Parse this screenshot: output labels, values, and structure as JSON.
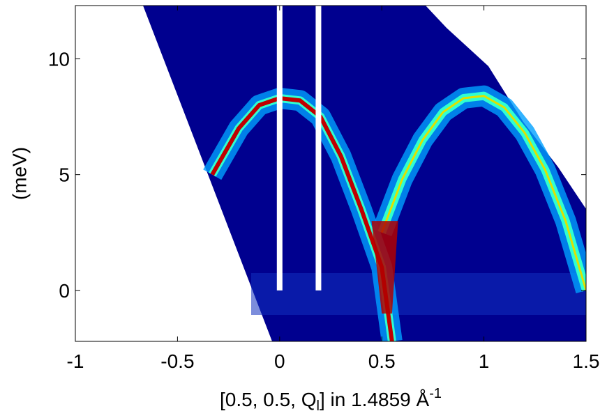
{
  "chart_data": {
    "type": "heatmap",
    "xlabel": {
      "text": "[0.5, 0.5, Q",
      "sub": "l",
      "rest": "] in 1.4859 Å",
      "sup": "-1"
    },
    "ylabel": "(meV)",
    "xlim": [
      -1,
      1.5
    ],
    "ylim": [
      -2.2,
      12.3
    ],
    "xticks": [
      -1,
      -0.5,
      0,
      0.5,
      1,
      1.5
    ],
    "yticks": [
      0,
      5,
      10
    ],
    "series": [
      {
        "x": [
          -0.33,
          -0.2,
          -0.1,
          0,
          0.1,
          0.2,
          0.3,
          0.4,
          0.5,
          0.55
        ],
        "values": [
          5,
          7,
          8,
          8.3,
          8.2,
          7.5,
          5.8,
          3.5,
          1,
          -2.2
        ]
      },
      {
        "x": [
          0.5,
          0.6,
          0.7,
          0.8,
          0.9,
          1,
          1.1,
          1.2,
          1.3,
          1.4,
          1.5
        ],
        "values": [
          2.5,
          4.8,
          6.5,
          7.7,
          8.3,
          8.4,
          7.9,
          6.8,
          5.2,
          3,
          0
        ]
      }
    ]
  }
}
